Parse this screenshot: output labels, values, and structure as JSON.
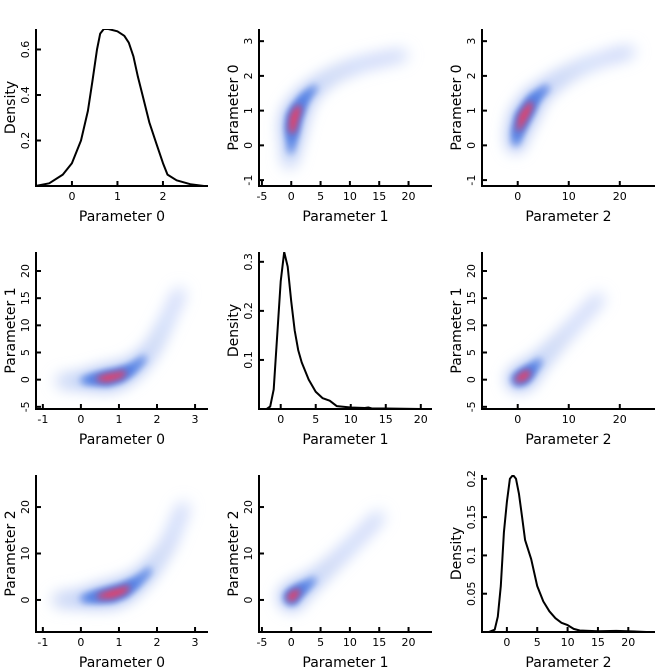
{
  "chart_data": {
    "type": "pairplot",
    "colors": {
      "line": "#000000",
      "density_low": "#c9d6f7",
      "density_mid": "#4f7de3",
      "density_high": "#e0436d"
    },
    "grid": false,
    "panels": [
      {
        "row": 0,
        "col": 0,
        "type": "line",
        "xlabel": "Parameter 0",
        "ylabel": "Density",
        "xlim": [
          -0.79,
          2.99
        ],
        "ylim": [
          0,
          0.69
        ],
        "xticks": [
          0,
          1,
          2
        ],
        "xticklabels": [
          "0",
          "1",
          "2"
        ],
        "yticks": [
          0.2,
          0.4,
          0.6
        ],
        "yticklabels": [
          "0.2",
          "0.4",
          "0.6"
        ],
        "x": [
          -0.8,
          -0.5,
          -0.2,
          0,
          0.2,
          0.35,
          0.45,
          0.55,
          0.62,
          0.7,
          0.8,
          1.0,
          1.15,
          1.25,
          1.35,
          1.45,
          1.55,
          1.7,
          1.85,
          2.0,
          2.1,
          2.3,
          2.6,
          2.9
        ],
        "y": [
          0,
          0.012,
          0.05,
          0.1,
          0.2,
          0.33,
          0.46,
          0.6,
          0.67,
          0.69,
          0.69,
          0.68,
          0.66,
          0.63,
          0.57,
          0.48,
          0.4,
          0.28,
          0.19,
          0.1,
          0.05,
          0.025,
          0.008,
          0
        ]
      },
      {
        "row": 0,
        "col": 1,
        "type": "density2d",
        "xlabel": "Parameter 1",
        "ylabel": "Parameter 0",
        "xlim": [
          -5.5,
          24
        ],
        "ylim": [
          -1.17,
          3.35
        ],
        "xticks": [
          -5,
          0,
          5,
          10,
          15,
          20
        ],
        "xticklabels": [
          "-5",
          "0",
          "5",
          "10",
          "15",
          "20"
        ],
        "yticks": [
          -1,
          0,
          1,
          2,
          3
        ],
        "yticklabels": [
          "-1",
          "0",
          "1",
          "2",
          "3"
        ],
        "ridge": [
          [
            -0.3,
            -0.5,
            0.1
          ],
          [
            0,
            0,
            0.4
          ],
          [
            0.2,
            0.5,
            0.9
          ],
          [
            0.5,
            0.8,
            1
          ],
          [
            1,
            1.0,
            0.9
          ],
          [
            2,
            1.3,
            0.6
          ],
          [
            3,
            1.5,
            0.4
          ],
          [
            5,
            1.8,
            0.2
          ],
          [
            8,
            2.1,
            0.1
          ],
          [
            12,
            2.35,
            0.05
          ],
          [
            16,
            2.5,
            0.03
          ],
          [
            19,
            2.6,
            0.02
          ]
        ]
      },
      {
        "row": 0,
        "col": 2,
        "type": "density2d",
        "xlabel": "Parameter 2",
        "ylabel": "Parameter 0",
        "xlim": [
          -7,
          26.9
        ],
        "ylim": [
          -1.17,
          3.35
        ],
        "xticks": [
          0,
          10,
          20
        ],
        "xticklabels": [
          "0",
          "10",
          "20"
        ],
        "yticks": [
          -1,
          0,
          1,
          2,
          3
        ],
        "yticklabels": [
          "-1",
          "0",
          "1",
          "2",
          "3"
        ],
        "ridge": [
          [
            -0.5,
            0,
            0.3
          ],
          [
            0,
            0.4,
            0.7
          ],
          [
            1,
            0.8,
            1
          ],
          [
            2,
            1.05,
            0.9
          ],
          [
            3,
            1.3,
            0.7
          ],
          [
            4,
            1.45,
            0.5
          ],
          [
            6,
            1.7,
            0.3
          ],
          [
            9,
            2.0,
            0.15
          ],
          [
            13,
            2.3,
            0.06
          ],
          [
            18,
            2.55,
            0.03
          ],
          [
            22,
            2.7,
            0.02
          ]
        ]
      },
      {
        "row": 1,
        "col": 0,
        "type": "density2d",
        "xlabel": "Parameter 0",
        "ylabel": "Parameter 1",
        "xlim": [
          -1.18,
          3.34
        ],
        "ylim": [
          -5.4,
          23.5
        ],
        "xticks": [
          -1,
          0,
          1,
          2,
          3
        ],
        "xticklabels": [
          "-1",
          "0",
          "1",
          "2",
          "3"
        ],
        "yticks": [
          -5,
          0,
          5,
          10,
          15,
          20
        ],
        "yticklabels": [
          "-5",
          "0",
          "5",
          "10",
          "15",
          "20"
        ],
        "ridge": [
          [
            -0.5,
            -0.3,
            0.1
          ],
          [
            0,
            -0.2,
            0.25
          ],
          [
            0.4,
            0.1,
            0.7
          ],
          [
            0.7,
            0.3,
            1
          ],
          [
            1,
            0.8,
            0.9
          ],
          [
            1.3,
            1.8,
            0.6
          ],
          [
            1.6,
            3.5,
            0.35
          ],
          [
            1.9,
            6,
            0.15
          ],
          [
            2.2,
            10,
            0.06
          ],
          [
            2.6,
            16,
            0.02
          ]
        ]
      },
      {
        "row": 1,
        "col": 1,
        "type": "line",
        "xlabel": "Parameter 1",
        "ylabel": "Density",
        "xlim": [
          -3.1,
          21.6
        ],
        "ylim": [
          0,
          0.32
        ],
        "xticks": [
          0,
          5,
          10,
          15,
          20
        ],
        "xticklabels": [
          "0",
          "5",
          "10",
          "15",
          "20"
        ],
        "yticks": [
          0.1,
          0.2,
          0.3
        ],
        "yticklabels": [
          "0.1",
          "0.2",
          "0.3"
        ],
        "x": [
          -2,
          -1.5,
          -1,
          -0.5,
          0,
          0.5,
          1,
          1.5,
          2,
          2.5,
          3,
          4,
          5,
          6,
          7,
          8,
          10,
          12,
          12.5,
          13,
          15,
          20
        ],
        "y": [
          0,
          0.005,
          0.04,
          0.15,
          0.26,
          0.32,
          0.29,
          0.22,
          0.16,
          0.12,
          0.095,
          0.06,
          0.035,
          0.022,
          0.017,
          0.006,
          0.003,
          0.002,
          0.003,
          0.001,
          0.001,
          0
        ]
      },
      {
        "row": 1,
        "col": 2,
        "type": "density2d",
        "xlabel": "Parameter 2",
        "ylabel": "Parameter 1",
        "xlim": [
          -7,
          26.9
        ],
        "ylim": [
          -5.4,
          23.5
        ],
        "xticks": [
          0,
          10,
          20
        ],
        "xticklabels": [
          "0",
          "10",
          "20"
        ],
        "yticks": [
          -5,
          0,
          5,
          10,
          15,
          20
        ],
        "yticklabels": [
          "-5",
          "0",
          "5",
          "10",
          "15",
          "20"
        ],
        "ridge": [
          [
            0,
            0,
            0.8
          ],
          [
            1,
            0.5,
            1
          ],
          [
            2,
            1.3,
            0.8
          ],
          [
            3,
            2.2,
            0.5
          ],
          [
            5,
            4,
            0.25
          ],
          [
            8,
            7,
            0.1
          ],
          [
            12,
            11,
            0.04
          ],
          [
            16,
            15,
            0.02
          ]
        ]
      },
      {
        "row": 2,
        "col": 0,
        "type": "density2d",
        "xlabel": "Parameter 0",
        "ylabel": "Parameter 2",
        "xlim": [
          -1.18,
          3.34
        ],
        "ylim": [
          -6.9,
          26.9
        ],
        "xticks": [
          -1,
          0,
          1,
          2,
          3
        ],
        "xticklabels": [
          "-1",
          "0",
          "1",
          "2",
          "3"
        ],
        "yticks": [
          0,
          10,
          20
        ],
        "yticklabels": [
          "0",
          "10",
          "20"
        ],
        "ridge": [
          [
            -0.6,
            0,
            0.1
          ],
          [
            0,
            0.2,
            0.3
          ],
          [
            0.5,
            0.8,
            0.8
          ],
          [
            0.8,
            1.2,
            1
          ],
          [
            1.1,
            2,
            0.9
          ],
          [
            1.4,
            3.5,
            0.6
          ],
          [
            1.7,
            5.5,
            0.35
          ],
          [
            2,
            8.5,
            0.18
          ],
          [
            2.3,
            12,
            0.08
          ],
          [
            2.7,
            20,
            0.02
          ]
        ]
      },
      {
        "row": 2,
        "col": 1,
        "type": "density2d",
        "xlabel": "Parameter 1",
        "ylabel": "Parameter 2",
        "xlim": [
          -5.5,
          24
        ],
        "ylim": [
          -6.9,
          26.9
        ],
        "xticks": [
          -5,
          0,
          5,
          10,
          15,
          20
        ],
        "xticklabels": [
          "-5",
          "0",
          "5",
          "10",
          "15",
          "20"
        ],
        "yticks": [
          0,
          10,
          20
        ],
        "yticklabels": [
          "0",
          "10",
          "20"
        ],
        "ridge": [
          [
            0,
            0.5,
            1
          ],
          [
            0.5,
            1.2,
            0.9
          ],
          [
            1.5,
            2.2,
            0.7
          ],
          [
            3,
            3.5,
            0.4
          ],
          [
            5,
            5.5,
            0.2
          ],
          [
            8,
            9,
            0.08
          ],
          [
            12,
            14,
            0.03
          ],
          [
            15,
            18,
            0.02
          ]
        ]
      },
      {
        "row": 2,
        "col": 2,
        "type": "line",
        "xlabel": "Parameter 2",
        "ylabel": "Density",
        "xlim": [
          -4.1,
          24.4
        ],
        "ylim": [
          0,
          0.205
        ],
        "xticks": [
          0,
          5,
          10,
          15,
          20
        ],
        "xticklabels": [
          "0",
          "5",
          "10",
          "15",
          "20"
        ],
        "yticks": [
          0.05,
          0.1,
          0.15,
          0.2
        ],
        "yticklabels": [
          "0.05",
          "0.1",
          "0.15",
          "0.2"
        ],
        "x": [
          -3,
          -2,
          -1.5,
          -1,
          -0.5,
          0,
          0.5,
          1,
          1.5,
          2,
          2.5,
          3,
          4,
          5,
          6,
          7,
          8,
          9,
          10,
          11,
          12,
          15,
          18,
          20,
          23
        ],
        "y": [
          0,
          0.003,
          0.02,
          0.06,
          0.13,
          0.17,
          0.2,
          0.205,
          0.2,
          0.18,
          0.15,
          0.12,
          0.095,
          0.06,
          0.04,
          0.027,
          0.018,
          0.012,
          0.009,
          0.004,
          0.002,
          0.001,
          0.0015,
          0.001,
          0
        ]
      }
    ]
  }
}
